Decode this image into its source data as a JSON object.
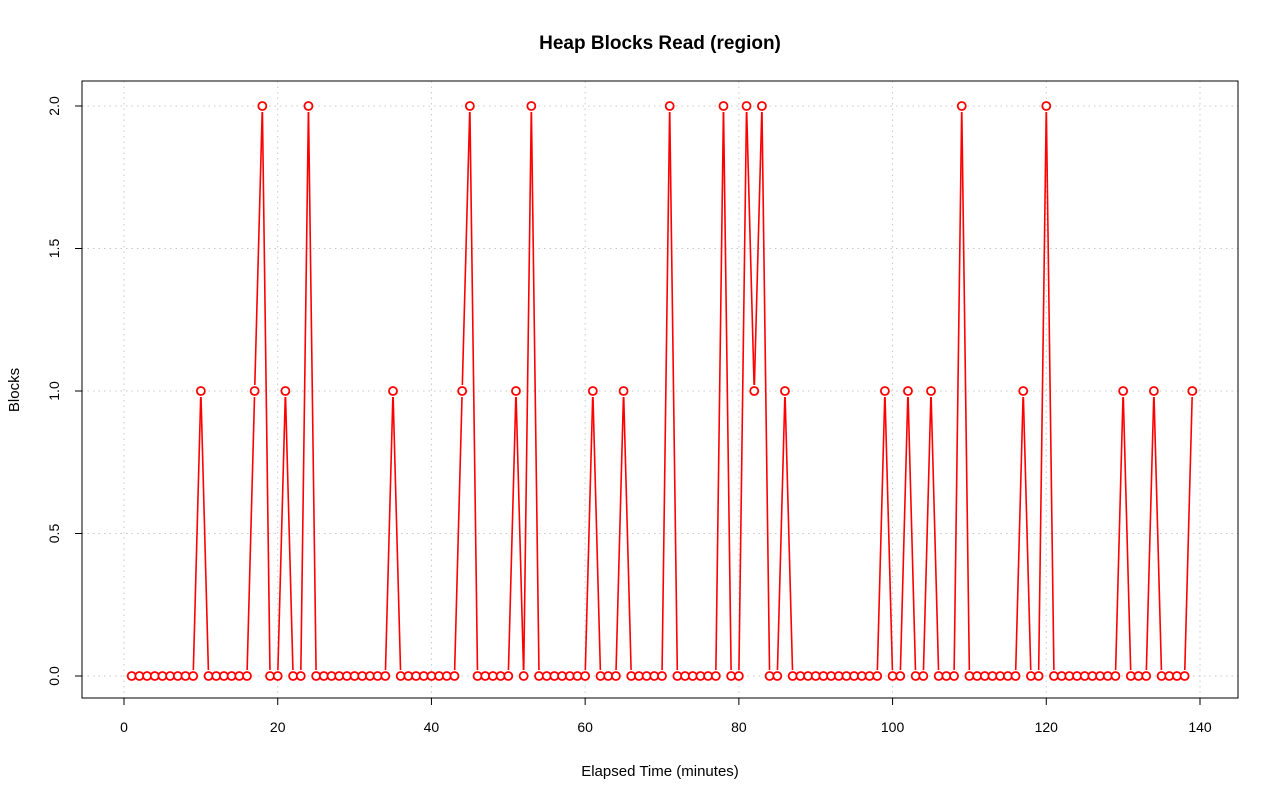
{
  "chart_data": {
    "type": "line",
    "title": "Heap Blocks Read (region)",
    "xlabel": "Elapsed Time (minutes)",
    "ylabel": "Blocks",
    "xlim": [
      0,
      140
    ],
    "ylim": [
      0,
      2
    ],
    "x_ticks": [
      0,
      20,
      40,
      60,
      80,
      100,
      120,
      140
    ],
    "y_ticks": [
      0.0,
      0.5,
      1.0,
      1.5,
      2.0
    ],
    "x_tick_labels": [
      "0",
      "20",
      "40",
      "60",
      "80",
      "100",
      "120",
      "140"
    ],
    "y_tick_labels": [
      "0.0",
      "0.5",
      "1.0",
      "1.5",
      "2.0"
    ],
    "grid": true,
    "marker": "open-circle",
    "colors": {
      "series": "#ff0000",
      "grid": "#c8c8c8",
      "frame": "#000000"
    },
    "series": [
      {
        "x": [
          1,
          2,
          3,
          4,
          5,
          6,
          7,
          8,
          9,
          10,
          11,
          12,
          13,
          14,
          15,
          16,
          17,
          18,
          19,
          20,
          21,
          22,
          23,
          24,
          25,
          26,
          27,
          28,
          29,
          30,
          31,
          32,
          33,
          34,
          35,
          36,
          37,
          38,
          39,
          40,
          41,
          42,
          43,
          44,
          45,
          46,
          47,
          48,
          49,
          50,
          51,
          52,
          53,
          54,
          55,
          56,
          57,
          58,
          59,
          60,
          61,
          62,
          63,
          64,
          65,
          66,
          67,
          68,
          69,
          70,
          71,
          72,
          73,
          74,
          75,
          76,
          77,
          78,
          79,
          80,
          81,
          82,
          83,
          84,
          85,
          86,
          87,
          88,
          89,
          90,
          91,
          92,
          93,
          94,
          95,
          96,
          97,
          98,
          99,
          100,
          101,
          102,
          103,
          104,
          105,
          106,
          107,
          108,
          109,
          110,
          111,
          112,
          113,
          114,
          115,
          116,
          117,
          118,
          119,
          120,
          121,
          122,
          123,
          124,
          125,
          126,
          127,
          128,
          129,
          130,
          131,
          132,
          133,
          134,
          135,
          136,
          137,
          138,
          139
        ],
        "values": [
          0,
          0,
          0,
          0,
          0,
          0,
          0,
          0,
          0,
          1,
          0,
          0,
          0,
          0,
          0,
          0,
          1,
          2,
          0,
          0,
          1,
          0,
          0,
          2,
          0,
          0,
          0,
          0,
          0,
          0,
          0,
          0,
          0,
          0,
          1,
          0,
          0,
          0,
          0,
          0,
          0,
          0,
          0,
          1,
          2,
          0,
          0,
          0,
          0,
          0,
          1,
          0,
          2,
          0,
          0,
          0,
          0,
          0,
          0,
          0,
          1,
          0,
          0,
          0,
          1,
          0,
          0,
          0,
          0,
          0,
          2,
          0,
          0,
          0,
          0,
          0,
          0,
          2,
          0,
          0,
          2,
          1,
          2,
          0,
          0,
          1,
          0,
          0,
          0,
          0,
          0,
          0,
          0,
          0,
          0,
          0,
          0,
          0,
          1,
          0,
          0,
          1,
          0,
          0,
          1,
          0,
          0,
          0,
          2,
          0,
          0,
          0,
          0,
          0,
          0,
          0,
          1,
          0,
          0,
          2,
          0,
          0,
          0,
          0,
          0,
          0,
          0,
          0,
          0,
          1,
          0,
          0,
          0,
          1,
          0,
          0,
          0,
          0,
          1
        ]
      }
    ]
  }
}
